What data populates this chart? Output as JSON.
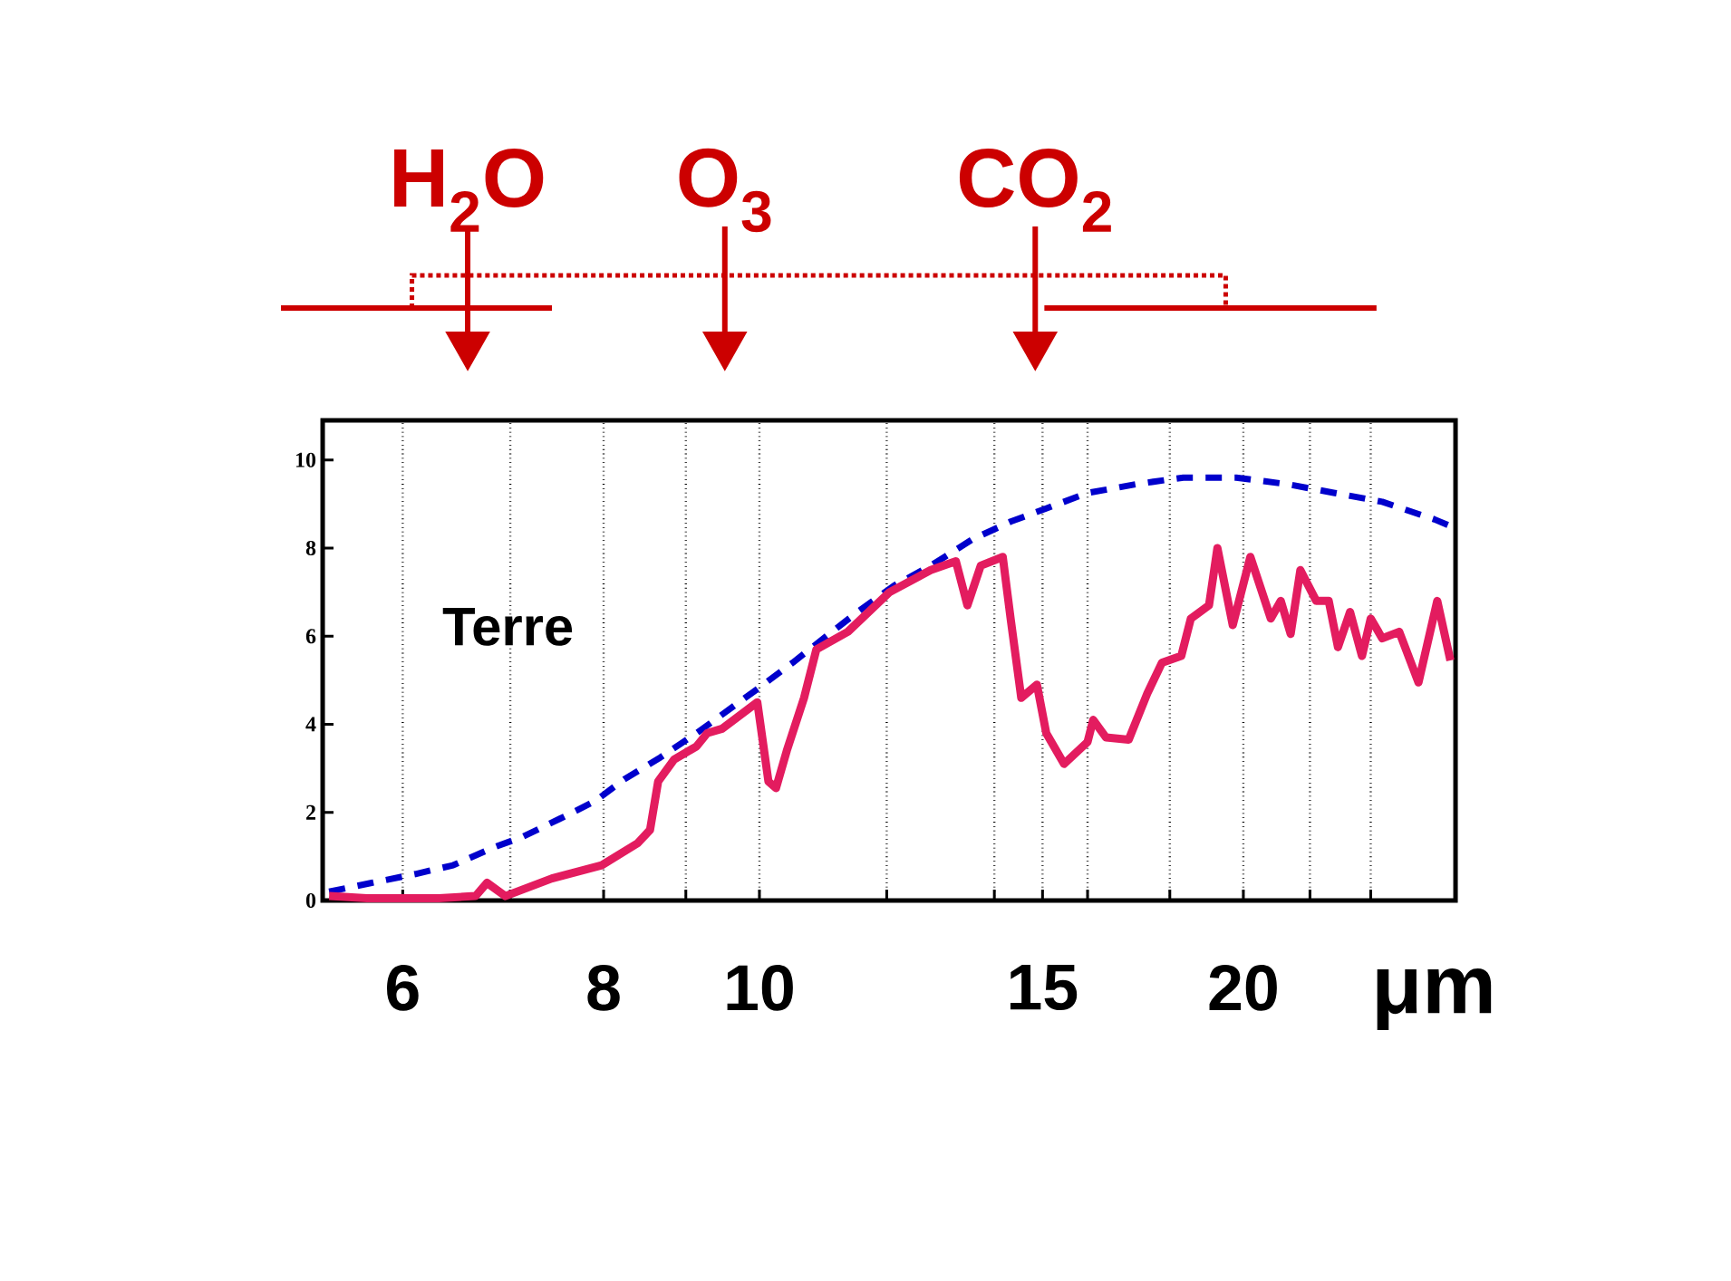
{
  "chart_data": {
    "type": "line",
    "xlabel": "μm",
    "log": "x",
    "grid": "x",
    "xlim": [
      5.35,
      27.1
    ],
    "ylim": [
      0,
      10.9
    ],
    "xticks": [
      6,
      {
        "value": 7,
        "label": null
      },
      8,
      {
        "value": 9,
        "label": null
      },
      10,
      {
        "value": 12,
        "label": null
      },
      {
        "value": 14,
        "label": null
      },
      15,
      {
        "value": 16,
        "label": null
      },
      {
        "value": 18,
        "label": null
      },
      20,
      {
        "value": 22,
        "label": null
      },
      {
        "value": 24,
        "label": null
      }
    ],
    "yticks": [
      0,
      2,
      4,
      6,
      8,
      10
    ],
    "annotations": [
      "Terre",
      "H$_{2}$O",
      "O$_{3}$",
      "CO$_{2}$"
    ],
    "series": [
      {
        "color": "#0000cc",
        "line_style": "dashed",
        "x": [
          5.4,
          5.74,
          6.11,
          6.45,
          6.83,
          7.13,
          7.51,
          7.9,
          8.24,
          8.68,
          9.14,
          9.97,
          10.49,
          11.05,
          11.51,
          12.13,
          12.78,
          13.57,
          14.33,
          15.08,
          16.0,
          17.15,
          18.35,
          19.8,
          21.3,
          22.8,
          24.4,
          26.3,
          26.9
        ],
        "values": [
          0.2,
          0.4,
          0.6,
          0.8,
          1.2,
          1.45,
          1.85,
          2.25,
          2.75,
          3.25,
          3.8,
          4.8,
          5.4,
          6.05,
          6.55,
          7.15,
          7.6,
          8.2,
          8.6,
          8.9,
          9.25,
          9.45,
          9.6,
          9.6,
          9.45,
          9.25,
          9.05,
          8.65,
          8.5
        ]
      },
      {
        "color": "#e31c5f",
        "line_style": "solid",
        "x": [
          5.4,
          5.7,
          6.32,
          6.66,
          6.77,
          6.95,
          7.43,
          7.98,
          8.4,
          8.55,
          8.65,
          8.85,
          9.14,
          9.28,
          9.48,
          9.97,
          10.13,
          10.24,
          10.4,
          10.66,
          10.85,
          11.35,
          12.05,
          12.78,
          13.25,
          13.47,
          13.73,
          14.17,
          14.33,
          14.55,
          14.88,
          15.08,
          15.47,
          16.0,
          16.13,
          16.43,
          16.97,
          17.43,
          17.8,
          18.3,
          18.55,
          19.04,
          19.27,
          19.7,
          20.2,
          20.8,
          21.1,
          21.4,
          21.7,
          22.2,
          22.6,
          22.9,
          23.3,
          23.7,
          24.0,
          24.4,
          25.0,
          25.7,
          26.4,
          26.9
        ],
        "values": [
          0.1,
          0.05,
          0.05,
          0.1,
          0.4,
          0.1,
          0.5,
          0.8,
          1.3,
          1.6,
          2.7,
          3.2,
          3.5,
          3.8,
          3.9,
          4.5,
          2.7,
          2.55,
          3.4,
          4.6,
          5.7,
          6.1,
          7.0,
          7.5,
          7.7,
          6.7,
          7.6,
          7.8,
          6.4,
          4.6,
          4.9,
          3.8,
          3.1,
          3.6,
          4.1,
          3.7,
          3.65,
          4.7,
          5.4,
          5.55,
          6.4,
          6.7,
          8.0,
          6.25,
          7.8,
          6.4,
          6.8,
          6.05,
          7.5,
          6.8,
          6.8,
          5.75,
          6.55,
          5.55,
          6.4,
          5.95,
          6.1,
          4.95,
          6.8,
          5.45
        ]
      }
    ]
  }
}
